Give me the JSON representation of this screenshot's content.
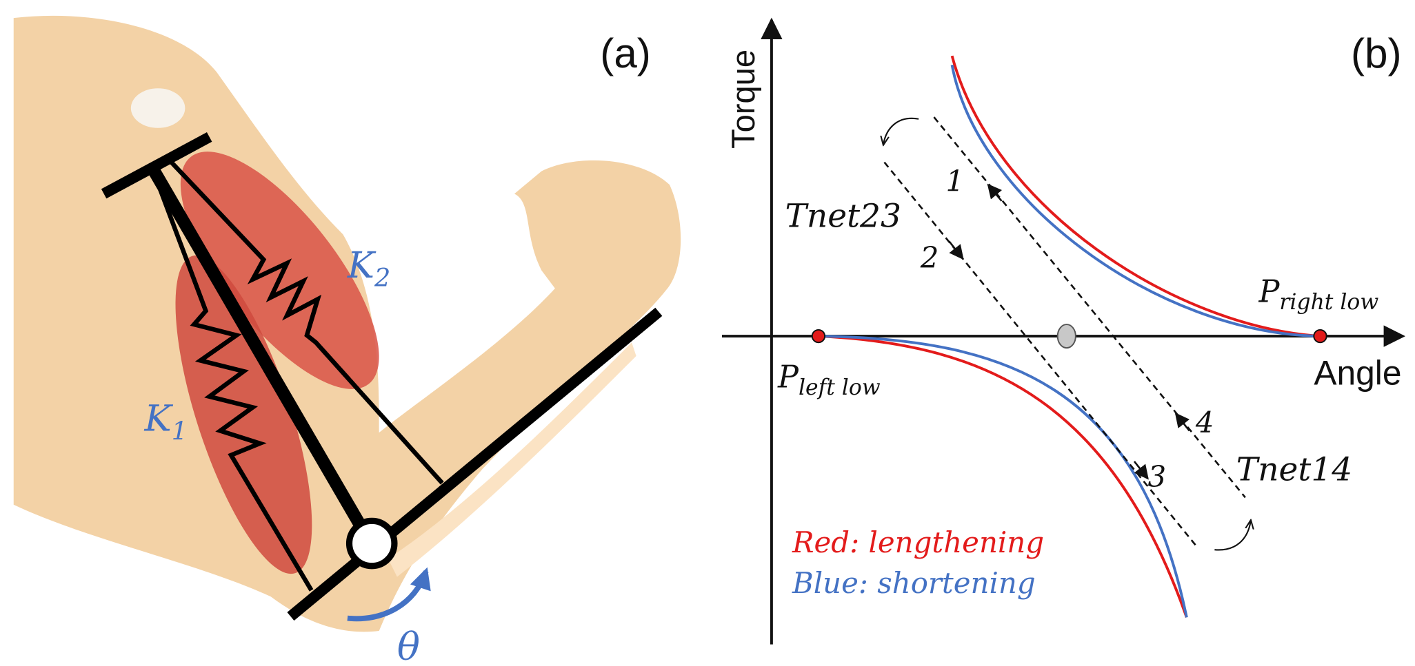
{
  "panel_a": {
    "label": "(a)",
    "springs": [
      {
        "base": "K",
        "sub": "1"
      },
      {
        "base": "K",
        "sub": "2"
      }
    ],
    "angle_symbol": "θ"
  },
  "panel_b": {
    "label": "(b)",
    "y_axis_label": "Torque",
    "x_axis_label": "Angle",
    "paths": [
      "Tnet23",
      "Tnet14"
    ],
    "steps": [
      "1",
      "2",
      "3",
      "4"
    ],
    "points": [
      {
        "base": "P",
        "sub": "left low"
      },
      {
        "base": "P",
        "sub": "right low"
      }
    ],
    "legend": [
      "Red: lengthening",
      "Blue: shortening"
    ]
  }
}
